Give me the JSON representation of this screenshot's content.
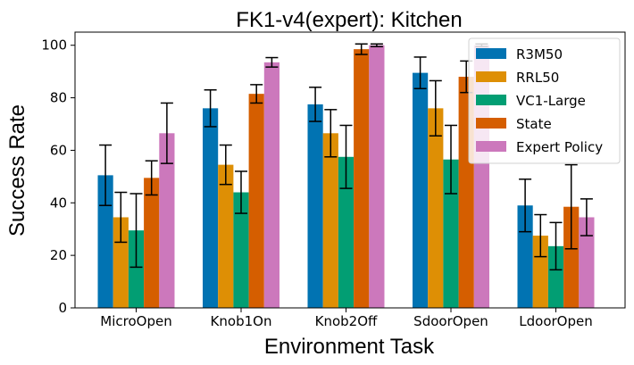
{
  "chart_data": {
    "type": "bar",
    "title": "FK1-v4(expert): Kitchen",
    "xlabel": "Environment Task",
    "ylabel": "Success Rate",
    "ylim": [
      0,
      105
    ],
    "yticks": [
      "0",
      "20",
      "40",
      "60",
      "80",
      "100"
    ],
    "categories": [
      "MicroOpen",
      "Knob1On",
      "Knob2Off",
      "SdoorOpen",
      "LdoorOpen"
    ],
    "legend_position": "top-right",
    "grid": false,
    "series": [
      {
        "name": "R3M50",
        "color": "#0173b2",
        "values": [
          50.5,
          76,
          77.5,
          89.5,
          39
        ],
        "errors": [
          11.5,
          7,
          6.5,
          6,
          10
        ]
      },
      {
        "name": "RRL50",
        "color": "#de8f05",
        "values": [
          34.5,
          54.5,
          66.5,
          76,
          27.5
        ],
        "errors": [
          9.5,
          7.5,
          9,
          10.5,
          8
        ]
      },
      {
        "name": "VC1-Large",
        "color": "#029e73",
        "values": [
          29.5,
          44,
          57.5,
          56.5,
          23.5
        ],
        "errors": [
          14,
          8,
          12,
          13,
          9
        ]
      },
      {
        "name": "State",
        "color": "#d55e00",
        "values": [
          49.5,
          81.5,
          98.5,
          88,
          38.5
        ],
        "errors": [
          6.5,
          3.5,
          2,
          6,
          16
        ]
      },
      {
        "name": "Expert Policy",
        "color": "#cc78bc",
        "values": [
          66.5,
          93.5,
          100,
          100,
          34.5
        ],
        "errors": [
          11.5,
          1.8,
          0.5,
          0.5,
          7
        ]
      }
    ]
  }
}
